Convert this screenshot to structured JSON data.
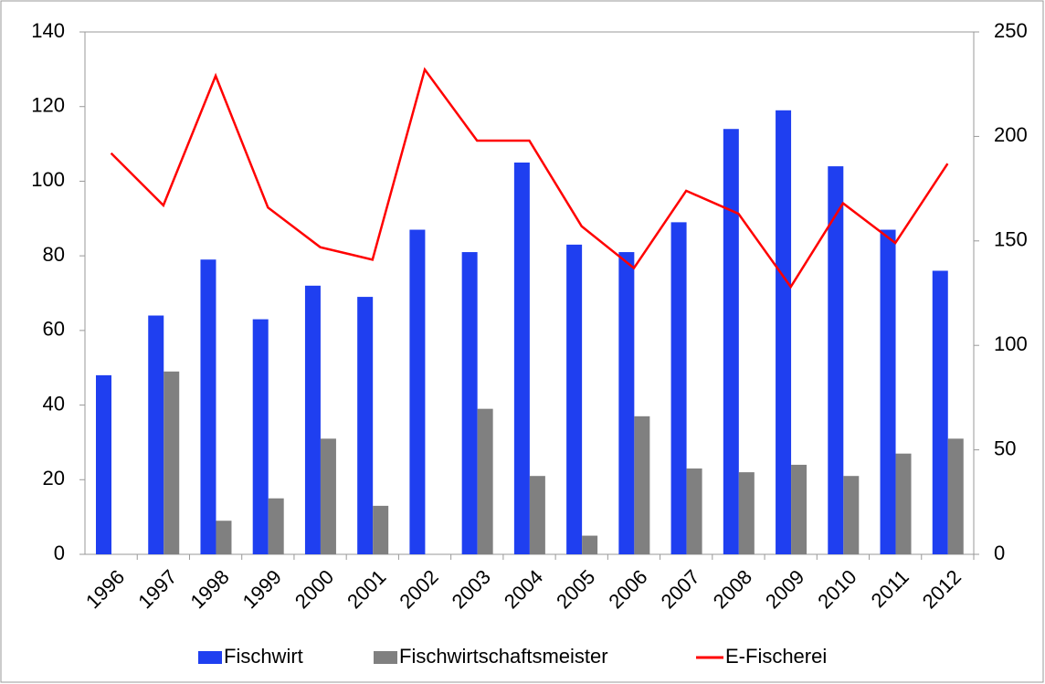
{
  "chart_data": {
    "type": "bar-line",
    "categories": [
      "1996",
      "1997",
      "1998",
      "1999",
      "2000",
      "2001",
      "2002",
      "2003",
      "2004",
      "2005",
      "2006",
      "2007",
      "2008",
      "2009",
      "2010",
      "2011",
      "2012"
    ],
    "series": [
      {
        "name": "Fischwirt",
        "color": "#1f3ff0",
        "type": "bar",
        "values": [
          48,
          64,
          79,
          63,
          72,
          69,
          87,
          81,
          105,
          83,
          81,
          89,
          114,
          119,
          104,
          87,
          76
        ]
      },
      {
        "name": "Fischwirtschaftsmeister",
        "color": "#808080",
        "type": "bar",
        "values": [
          0,
          49,
          9,
          15,
          31,
          13,
          0,
          39,
          21,
          5,
          37,
          23,
          22,
          24,
          21,
          27,
          31
        ]
      },
      {
        "name": "E-Fischerei",
        "color": "#ff0000",
        "type": "line",
        "axis": "y2",
        "values": [
          192,
          167,
          229,
          166,
          147,
          141,
          232,
          198,
          198,
          157,
          137,
          174,
          163,
          128,
          168,
          149,
          187
        ]
      }
    ],
    "ylim": [
      0,
      140
    ],
    "yticks": [
      0,
      20,
      40,
      60,
      80,
      100,
      120,
      140
    ],
    "y2lim": [
      0,
      250
    ],
    "y2ticks": [
      0,
      50,
      100,
      150,
      200,
      250
    ],
    "legend": "bottom"
  }
}
